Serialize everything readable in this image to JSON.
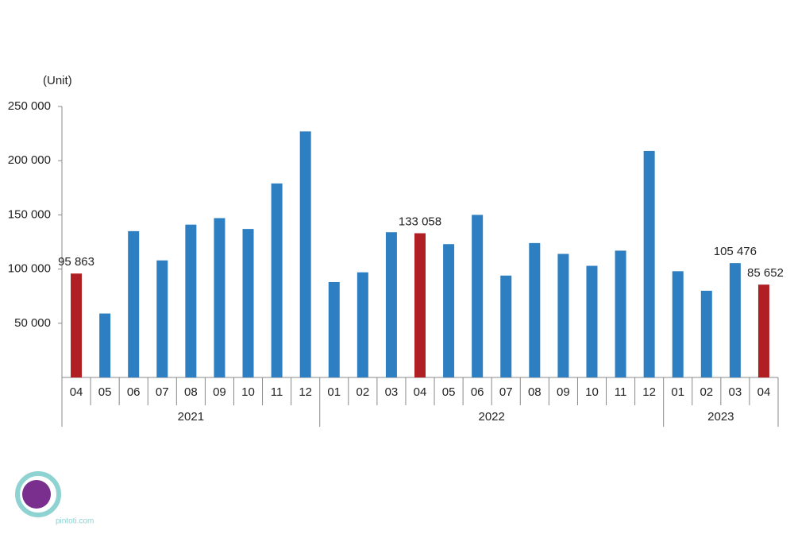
{
  "chart_data": {
    "type": "bar",
    "y_label": "(Unit)",
    "groups": [
      {
        "label": "2021",
        "categories": [
          "04",
          "05",
          "06",
          "07",
          "08",
          "09",
          "10",
          "11",
          "12"
        ]
      },
      {
        "label": "2022",
        "categories": [
          "01",
          "02",
          "03",
          "04",
          "05",
          "06",
          "07",
          "08",
          "09",
          "10",
          "11",
          "12"
        ]
      },
      {
        "label": "2023",
        "categories": [
          "01",
          "02",
          "03",
          "04"
        ]
      }
    ],
    "values": [
      95863,
      59000,
      135000,
      108000,
      141000,
      147000,
      137000,
      179000,
      227000,
      88000,
      97000,
      134000,
      133058,
      123000,
      150000,
      94000,
      124000,
      114000,
      103000,
      117000,
      209000,
      98000,
      80000,
      105476,
      85652
    ],
    "value_labels": [
      "95 863",
      null,
      null,
      null,
      null,
      null,
      null,
      null,
      null,
      null,
      null,
      null,
      "133 058",
      null,
      null,
      null,
      null,
      null,
      null,
      null,
      null,
      null,
      null,
      "105 476",
      "85 652"
    ],
    "colors": [
      "#b01f24",
      "#2e7fc1",
      "#2e7fc1",
      "#2e7fc1",
      "#2e7fc1",
      "#2e7fc1",
      "#2e7fc1",
      "#2e7fc1",
      "#2e7fc1",
      "#2e7fc1",
      "#2e7fc1",
      "#2e7fc1",
      "#b01f24",
      "#2e7fc1",
      "#2e7fc1",
      "#2e7fc1",
      "#2e7fc1",
      "#2e7fc1",
      "#2e7fc1",
      "#2e7fc1",
      "#2e7fc1",
      "#2e7fc1",
      "#2e7fc1",
      "#2e7fc1",
      "#b01f24"
    ],
    "ylim": [
      0,
      250000
    ],
    "yticks": [
      {
        "value": 50000,
        "label": "50 000"
      },
      {
        "value": 100000,
        "label": "100 000"
      },
      {
        "value": 150000,
        "label": "150 000"
      },
      {
        "value": 200000,
        "label": "200 000"
      },
      {
        "value": 250000,
        "label": "250 000"
      }
    ],
    "grid": false
  },
  "watermark": "pintoti.com"
}
